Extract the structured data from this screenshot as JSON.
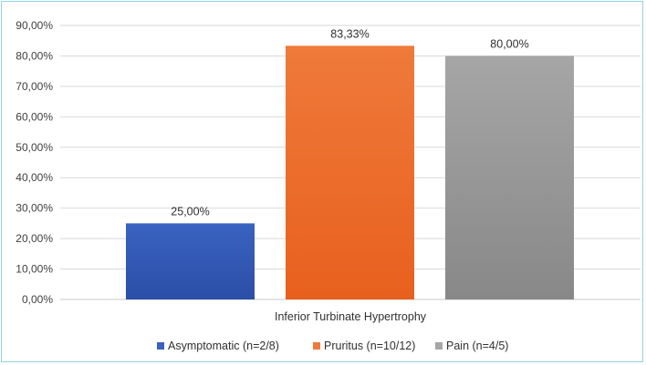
{
  "chart_data": {
    "type": "bar",
    "categories": [
      "Inferior Turbinate Hypertrophy"
    ],
    "series": [
      {
        "name": "Asymptomatic (n=2/8)",
        "values": [
          25.0
        ],
        "label": "25,00%",
        "color": "#3a62c0",
        "color_dark": "#2a4fa8"
      },
      {
        "name": "Pruritus (n=10/12)",
        "values": [
          83.33
        ],
        "label": "83,33%",
        "color": "#ef7a3a",
        "color_dark": "#e8601e"
      },
      {
        "name": "Pain (n=4/5)",
        "values": [
          80.0
        ],
        "label": "80,00%",
        "color": "#a6a6a6",
        "color_dark": "#888888"
      }
    ],
    "y_ticks": [
      {
        "value": 0,
        "label": "0,00%"
      },
      {
        "value": 10,
        "label": "10,00%"
      },
      {
        "value": 20,
        "label": "20,00%"
      },
      {
        "value": 30,
        "label": "30,00%"
      },
      {
        "value": 40,
        "label": "40,00%"
      },
      {
        "value": 50,
        "label": "50,00%"
      },
      {
        "value": 60,
        "label": "60,00%"
      },
      {
        "value": 70,
        "label": "70,00%"
      },
      {
        "value": 80,
        "label": "80,00%"
      },
      {
        "value": 90,
        "label": "90,00%"
      }
    ],
    "ylim": [
      0,
      90
    ],
    "grid": true,
    "legend_position": "bottom",
    "title": "",
    "xlabel": "",
    "ylabel": ""
  }
}
